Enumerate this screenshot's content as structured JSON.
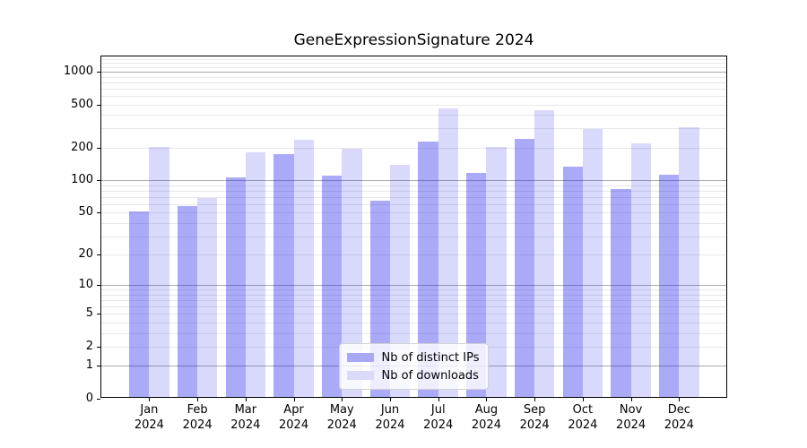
{
  "title": "GeneExpressionSignature 2024",
  "legend": {
    "items": [
      {
        "label": "Nb of distinct IPs",
        "swatch": "#a9a9f3"
      },
      {
        "label": "Nb of downloads",
        "swatch": "#dadaf9"
      }
    ]
  },
  "y_axis": {
    "scale": "log1p",
    "tick_labels": [
      "0",
      "1",
      "2",
      "5",
      "10",
      "20",
      "50",
      "100",
      "200",
      "500",
      "1000"
    ],
    "tick_values": [
      0,
      1,
      2,
      5,
      10,
      20,
      50,
      100,
      200,
      500,
      1000
    ],
    "major_grid_values": [
      1,
      10,
      100,
      1000
    ],
    "minor_grid_values": [
      2,
      3,
      4,
      5,
      6,
      7,
      8,
      9,
      20,
      30,
      40,
      50,
      60,
      70,
      80,
      90,
      200,
      300,
      400,
      500,
      600,
      700,
      800,
      900,
      1100,
      1200,
      1300
    ]
  },
  "x_axis": {
    "months": [
      "Jan",
      "Feb",
      "Mar",
      "Apr",
      "May",
      "Jun",
      "Jul",
      "Aug",
      "Sep",
      "Oct",
      "Nov",
      "Dec"
    ],
    "year": "2024"
  },
  "colors": {
    "bar_ips": "rgba(20,20,235,0.36)",
    "bar_downloads": "rgba(20,20,235,0.16)",
    "grid_major": "#ababab",
    "grid_minor": "#e8e8e8",
    "axis": "#000000",
    "text": "#000000"
  },
  "chart_data": {
    "type": "bar",
    "title": "GeneExpressionSignature 2024",
    "categories": [
      "Jan 2024",
      "Feb 2024",
      "Mar 2024",
      "Apr 2024",
      "May 2024",
      "Jun 2024",
      "Jul 2024",
      "Aug 2024",
      "Sep 2024",
      "Oct 2024",
      "Nov 2024",
      "Dec 2024"
    ],
    "series": [
      {
        "name": "Nb of distinct IPs",
        "values": [
          51,
          58,
          106,
          174,
          110,
          65,
          227,
          117,
          243,
          134,
          83,
          113
        ]
      },
      {
        "name": "Nb of downloads",
        "values": [
          203,
          68,
          181,
          236,
          194,
          139,
          462,
          203,
          440,
          297,
          219,
          309
        ]
      }
    ],
    "xlabel": "",
    "ylabel": "",
    "yscale": "log1p",
    "y_ticks": [
      0,
      1,
      2,
      5,
      10,
      20,
      50,
      100,
      200,
      500,
      1000
    ],
    "ylim": [
      0,
      1330
    ],
    "grid": true,
    "legend_position": "lower center"
  }
}
